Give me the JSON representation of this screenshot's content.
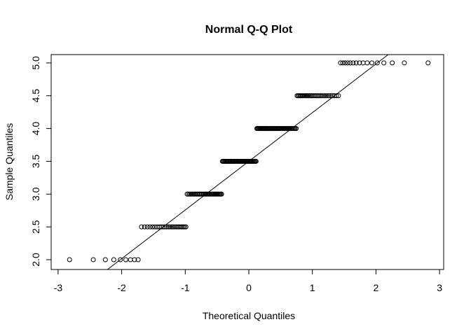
{
  "chart_data": {
    "type": "scatter",
    "title": "Normal Q-Q Plot",
    "xlabel": "Theoretical Quantiles",
    "ylabel": "Sample Quantiles",
    "xlim": [
      -3.05,
      3.1
    ],
    "ylim": [
      1.85,
      5.12
    ],
    "xticks": [
      "-3",
      "-2",
      "-1",
      "0",
      "1",
      "2",
      "3"
    ],
    "yticks": [
      "2.0",
      "2.5",
      "3.0",
      "3.5",
      "4.0",
      "4.5",
      "5.0"
    ],
    "sample_levels": [
      2.0,
      2.5,
      3.0,
      3.5,
      4.0,
      4.5,
      5.0
    ],
    "sample_counts": [
      9,
      25,
      36,
      44,
      47,
      31,
      16
    ],
    "qqline": {
      "intercept": 3.5,
      "slope": 0.742
    },
    "grid": false
  }
}
